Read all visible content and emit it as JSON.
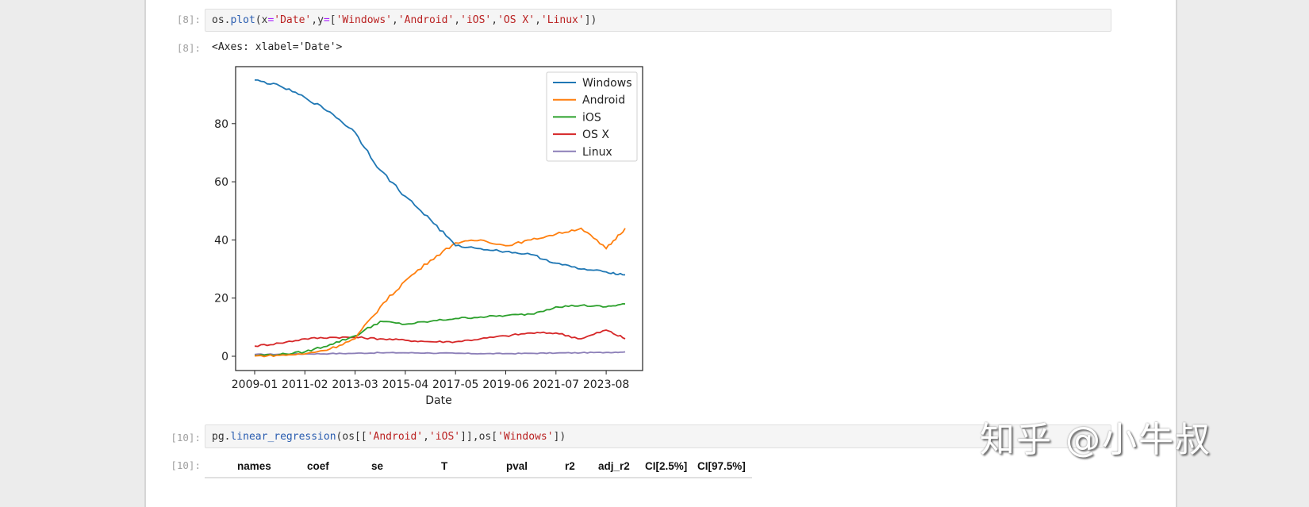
{
  "notebook": {
    "cells": [
      {
        "prompt_in": "[8]:",
        "code_parts": [
          {
            "t": "os.",
            "c": "kw"
          },
          {
            "t": "plot",
            "c": "fn"
          },
          {
            "t": "(x",
            "c": "kw"
          },
          {
            "t": "=",
            "c": "op"
          },
          {
            "t": "'Date'",
            "c": "str"
          },
          {
            "t": ",y",
            "c": "kw"
          },
          {
            "t": "=",
            "c": "op"
          },
          {
            "t": "[",
            "c": "kw"
          },
          {
            "t": "'Windows'",
            "c": "str"
          },
          {
            "t": ",",
            "c": "kw"
          },
          {
            "t": "'Android'",
            "c": "str"
          },
          {
            "t": ",",
            "c": "kw"
          },
          {
            "t": "'iOS'",
            "c": "str"
          },
          {
            "t": ",",
            "c": "kw"
          },
          {
            "t": "'OS X'",
            "c": "str"
          },
          {
            "t": ",",
            "c": "kw"
          },
          {
            "t": "'Linux'",
            "c": "str"
          },
          {
            "t": "])",
            "c": "kw"
          }
        ],
        "prompt_out": "[8]:",
        "output_text": "<Axes: xlabel='Date'>"
      },
      {
        "prompt_in": "[10]:",
        "code_parts": [
          {
            "t": "pg.",
            "c": "kw"
          },
          {
            "t": "linear_regression",
            "c": "fn"
          },
          {
            "t": "(os[[",
            "c": "kw"
          },
          {
            "t": "'Android'",
            "c": "str"
          },
          {
            "t": ",",
            "c": "kw"
          },
          {
            "t": "'iOS'",
            "c": "str"
          },
          {
            "t": "]],os[",
            "c": "kw"
          },
          {
            "t": "'Windows'",
            "c": "str"
          },
          {
            "t": "])",
            "c": "kw"
          }
        ],
        "prompt_out": "[10]:",
        "table_headers": [
          "names",
          "coef",
          "se",
          "T",
          "pval",
          "r2",
          "adj_r2",
          "CI[2.5%]",
          "CI[97.5%]"
        ]
      }
    ]
  },
  "watermark": "知乎 @小牛叔",
  "chart_data": {
    "type": "line",
    "title": "",
    "xlabel": "Date",
    "ylabel": "",
    "x_tick_labels": [
      "2009-01",
      "2011-02",
      "2013-03",
      "2015-04",
      "2017-05",
      "2019-06",
      "2021-07",
      "2023-08"
    ],
    "y_tick_labels": [
      "0",
      "20",
      "40",
      "60",
      "80"
    ],
    "ylim": [
      -3,
      100
    ],
    "grid": false,
    "legend_position": "upper right",
    "x": [
      "2009-01",
      "2010-01",
      "2011-02",
      "2012-02",
      "2013-03",
      "2014-03",
      "2015-04",
      "2016-04",
      "2017-05",
      "2018-05",
      "2019-06",
      "2020-06",
      "2021-07",
      "2022-07",
      "2023-08",
      "2024-04"
    ],
    "series": [
      {
        "name": "Windows",
        "color": "#1f77b4",
        "values": [
          95,
          93,
          89,
          84,
          77,
          64,
          55,
          47,
          38,
          37,
          36,
          35,
          32,
          30,
          29,
          28
        ]
      },
      {
        "name": "Android",
        "color": "#ff7f0e",
        "values": [
          0.1,
          0.3,
          0.8,
          2.5,
          6,
          17,
          26,
          33,
          39,
          40,
          38,
          40,
          42,
          44,
          37,
          44
        ]
      },
      {
        "name": "iOS",
        "color": "#2ca02c",
        "values": [
          0.3,
          0.6,
          1.5,
          4,
          7,
          12,
          11,
          12,
          13,
          13.5,
          14,
          14.5,
          17,
          17.5,
          17,
          18
        ]
      },
      {
        "name": "OS X",
        "color": "#d62728",
        "values": [
          3.5,
          4.5,
          6,
          6.5,
          6.5,
          6,
          5.5,
          5,
          5,
          6,
          7,
          8,
          8,
          6,
          9,
          6
        ]
      },
      {
        "name": "Linux",
        "color": "#8c7fb8",
        "values": [
          0.6,
          0.7,
          0.8,
          0.9,
          1.0,
          1.2,
          1.2,
          1.1,
          1.0,
          0.9,
          0.9,
          1.0,
          1.1,
          1.2,
          1.3,
          1.5
        ]
      }
    ]
  }
}
